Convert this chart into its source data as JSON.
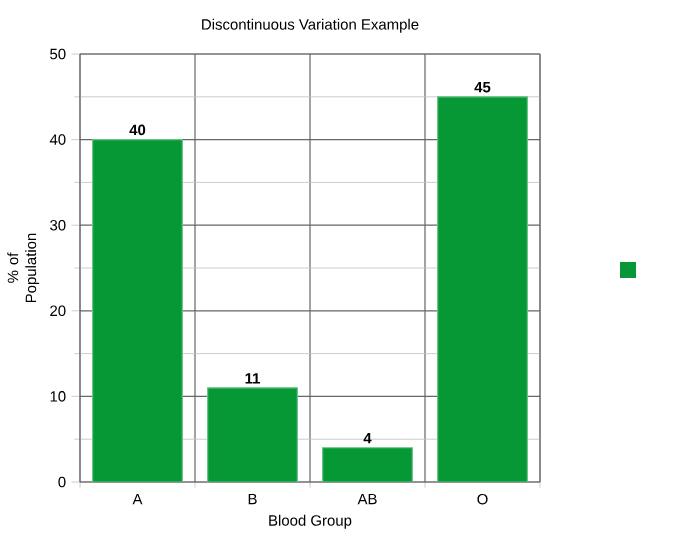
{
  "chart_data": {
    "type": "bar",
    "title": "Discontinuous Variation Example",
    "xlabel": "Blood Group",
    "ylabel": "% of Population",
    "categories": [
      "A",
      "B",
      "AB",
      "O"
    ],
    "values": [
      40,
      11,
      4,
      45
    ],
    "color": "#059835",
    "ylim": [
      0,
      50
    ],
    "yticks": [
      0,
      10,
      20,
      30,
      40,
      50
    ],
    "grid": true,
    "data_labels": true
  }
}
